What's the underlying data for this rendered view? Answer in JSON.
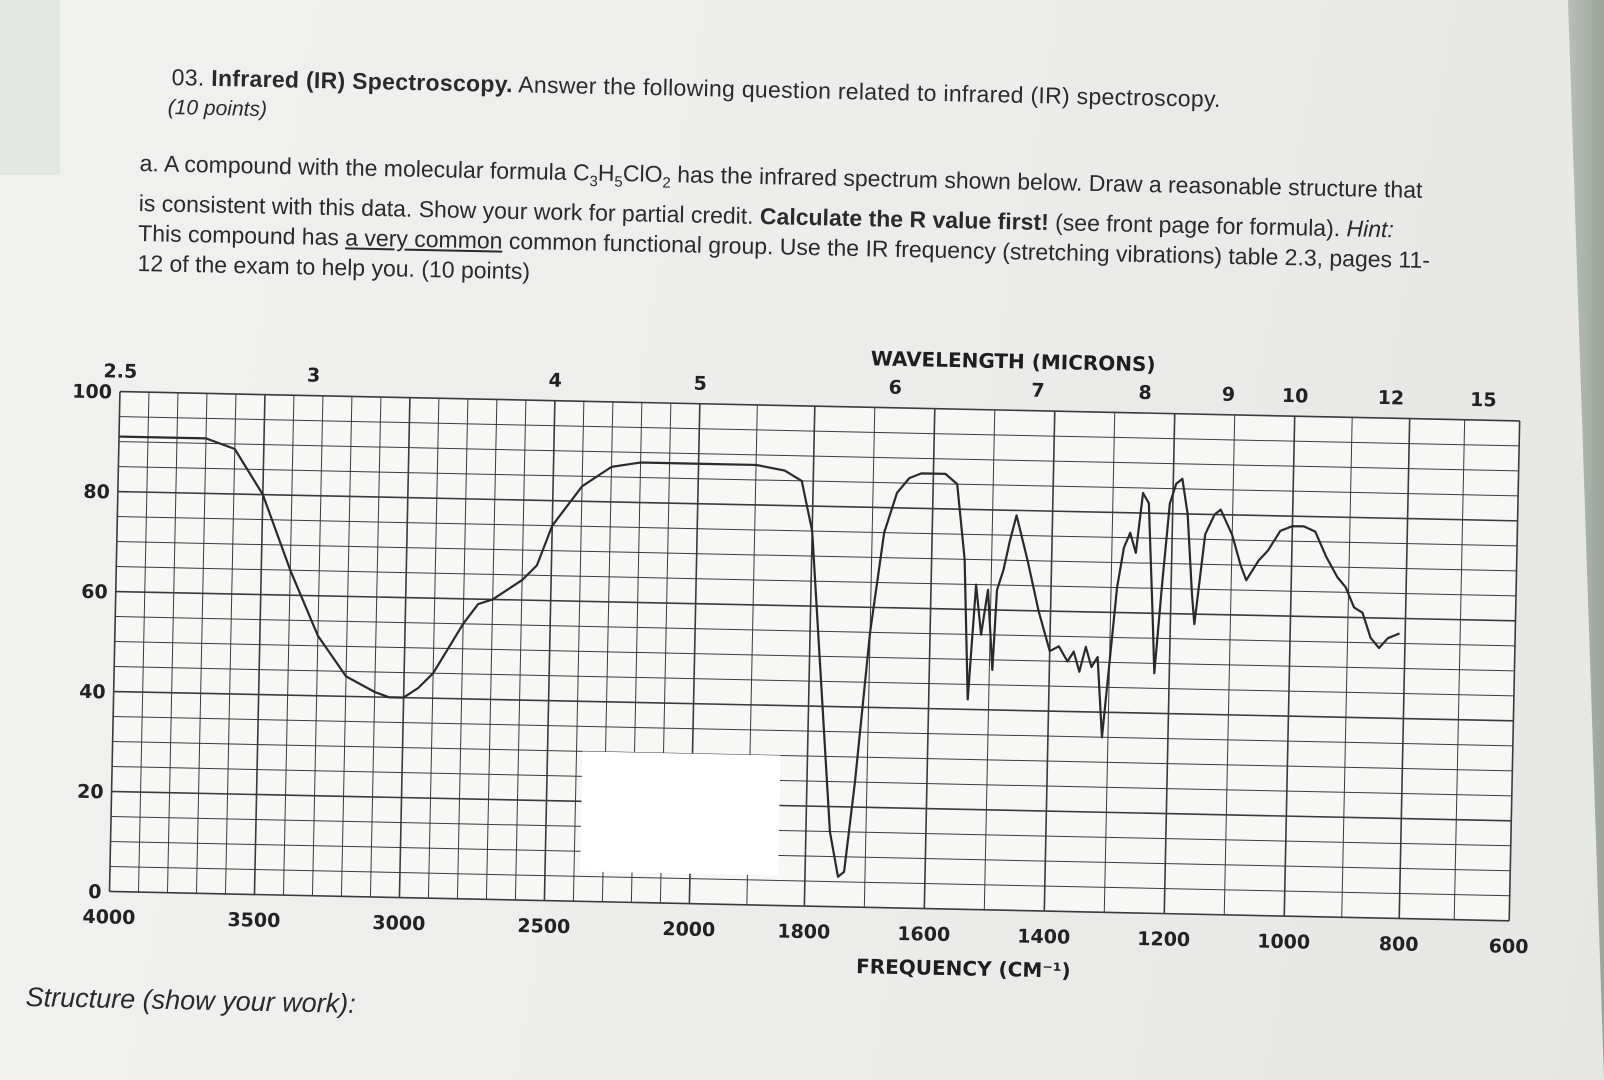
{
  "question": {
    "number_title_prefix": "03.",
    "title_bold": "Infrared (IR) Spectroscopy.",
    "title_rest": "Answer the following question related to infrared (IR) spectroscopy.",
    "points": "(10 points)",
    "part_a": {
      "t1": "a. A compound with the molecular formula C",
      "sub1": "3",
      "t2": "H",
      "sub2": "5",
      "t3": "ClO",
      "sub3": "2",
      "t4": " has the infrared spectrum shown below. Draw a reasonable structure that is consistent with this data. Show your work for partial credit. ",
      "b1": "Calculate the R value first!",
      "t5": " (see front page for formula). ",
      "hint_label": "Hint:",
      "t6": " This compound has ",
      "underlined": "a very common",
      "t7": " common functional group. Use the IR frequency (stretching vibrations) table 2.3, pages 11-12 of the exam to help you. (10 points)"
    }
  },
  "structure_label": "Structure (show your work):",
  "chart_data": {
    "type": "line",
    "top_axis_title": "WAVELENGTH (MICRONS)",
    "bottom_axis_title": "FREQUENCY (CM⁻¹)",
    "wavelength_ticks": [
      "2.5",
      "3",
      "4",
      "5",
      "6",
      "7",
      "8",
      "9",
      "10",
      "12",
      "15"
    ],
    "frequency_ticks": [
      "4000",
      "3500",
      "3000",
      "2500",
      "2000",
      "1800",
      "1600",
      "1400",
      "1200",
      "1000",
      "800",
      "600"
    ],
    "transmittance_ticks": [
      "100",
      "80",
      "60",
      "40",
      "20",
      "0"
    ],
    "ylim": [
      0,
      100
    ],
    "series": [
      {
        "values": [
          [
            4000,
            91
          ],
          [
            3700,
            91
          ],
          [
            3600,
            89
          ],
          [
            3500,
            80
          ],
          [
            3400,
            65
          ],
          [
            3300,
            52
          ],
          [
            3200,
            44
          ],
          [
            3100,
            41
          ],
          [
            3050,
            40
          ],
          [
            3000,
            40
          ],
          [
            2950,
            42
          ],
          [
            2900,
            45
          ],
          [
            2850,
            50
          ],
          [
            2800,
            55
          ],
          [
            2750,
            59
          ],
          [
            2700,
            60
          ],
          [
            2650,
            62
          ],
          [
            2600,
            64
          ],
          [
            2550,
            67
          ],
          [
            2500,
            75
          ],
          [
            2400,
            83
          ],
          [
            2300,
            87
          ],
          [
            2200,
            88
          ],
          [
            2100,
            88
          ],
          [
            2000,
            88
          ],
          [
            1900,
            88
          ],
          [
            1850,
            87
          ],
          [
            1820,
            85
          ],
          [
            1800,
            75
          ],
          [
            1780,
            45
          ],
          [
            1760,
            15
          ],
          [
            1745,
            6
          ],
          [
            1735,
            7
          ],
          [
            1720,
            25
          ],
          [
            1700,
            55
          ],
          [
            1680,
            75
          ],
          [
            1660,
            83
          ],
          [
            1640,
            86
          ],
          [
            1620,
            87
          ],
          [
            1600,
            87
          ],
          [
            1580,
            87
          ],
          [
            1560,
            85
          ],
          [
            1545,
            70
          ],
          [
            1535,
            42
          ],
          [
            1525,
            65
          ],
          [
            1515,
            55
          ],
          [
            1505,
            64
          ],
          [
            1495,
            48
          ],
          [
            1490,
            64
          ],
          [
            1480,
            68
          ],
          [
            1470,
            74
          ],
          [
            1460,
            79
          ],
          [
            1440,
            70
          ],
          [
            1420,
            60
          ],
          [
            1400,
            52
          ],
          [
            1385,
            53
          ],
          [
            1370,
            50
          ],
          [
            1360,
            52
          ],
          [
            1350,
            48
          ],
          [
            1340,
            53
          ],
          [
            1330,
            49
          ],
          [
            1320,
            51
          ],
          [
            1310,
            35
          ],
          [
            1300,
            50
          ],
          [
            1290,
            65
          ],
          [
            1280,
            73
          ],
          [
            1270,
            76
          ],
          [
            1260,
            72
          ],
          [
            1250,
            84
          ],
          [
            1240,
            82
          ],
          [
            1230,
            60
          ],
          [
            1225,
            48
          ],
          [
            1215,
            66
          ],
          [
            1205,
            82
          ],
          [
            1195,
            86
          ],
          [
            1185,
            87
          ],
          [
            1175,
            80
          ],
          [
            1165,
            64
          ],
          [
            1160,
            58
          ],
          [
            1155,
            64
          ],
          [
            1145,
            76
          ],
          [
            1130,
            80
          ],
          [
            1120,
            81
          ],
          [
            1100,
            76
          ],
          [
            1085,
            70
          ],
          [
            1075,
            67
          ],
          [
            1065,
            69
          ],
          [
            1055,
            71
          ],
          [
            1040,
            73
          ],
          [
            1020,
            77
          ],
          [
            1000,
            78
          ],
          [
            980,
            78
          ],
          [
            960,
            77
          ],
          [
            940,
            72
          ],
          [
            920,
            68
          ],
          [
            905,
            66
          ],
          [
            890,
            62
          ],
          [
            875,
            61
          ],
          [
            860,
            56
          ],
          [
            845,
            54
          ],
          [
            830,
            56
          ],
          [
            810,
            57
          ]
        ]
      }
    ]
  }
}
